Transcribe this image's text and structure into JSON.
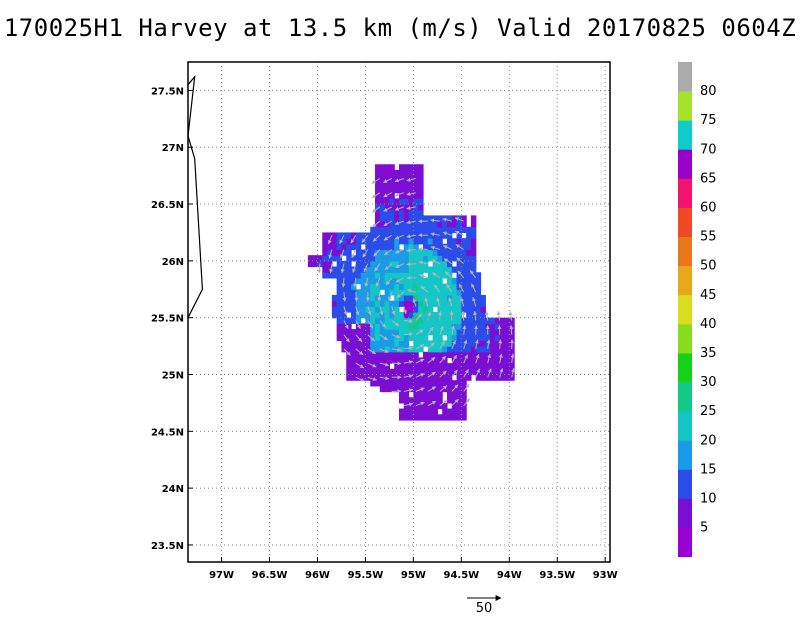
{
  "title": "170025H1 Harvey at 13.5 km (m/s) Valid 20170825 0604Z",
  "map": {
    "lon_range": [
      -97.35,
      -92.95
    ],
    "lat_range": [
      23.35,
      27.75
    ],
    "x_ticks": [
      {
        "value": -97.0,
        "label": "97W"
      },
      {
        "value": -96.5,
        "label": "96.5W"
      },
      {
        "value": -96.0,
        "label": "96W"
      },
      {
        "value": -95.5,
        "label": "95.5W"
      },
      {
        "value": -95.0,
        "label": "95W"
      },
      {
        "value": -94.5,
        "label": "94.5W"
      },
      {
        "value": -94.0,
        "label": "94W"
      },
      {
        "value": -93.5,
        "label": "93.5W"
      },
      {
        "value": -93.0,
        "label": "93W"
      }
    ],
    "y_ticks": [
      {
        "value": 23.5,
        "label": "23.5N"
      },
      {
        "value": 24.0,
        "label": "24N"
      },
      {
        "value": 24.5,
        "label": "24.5N"
      },
      {
        "value": 25.0,
        "label": "25N"
      },
      {
        "value": 25.5,
        "label": "25.5N"
      },
      {
        "value": 26.0,
        "label": "26N"
      },
      {
        "value": 26.5,
        "label": "26.5N"
      },
      {
        "value": 27.0,
        "label": "27N"
      },
      {
        "value": 27.5,
        "label": "27.5N"
      }
    ],
    "grid": true,
    "storm_center": {
      "lon": -95.05,
      "lat": 25.6
    },
    "coastline": [
      [
        -97.35,
        27.55
      ],
      [
        -97.28,
        27.62
      ],
      [
        -97.35,
        27.1
      ],
      [
        -97.28,
        26.9
      ],
      [
        -97.2,
        25.75
      ],
      [
        -97.35,
        25.5
      ]
    ]
  },
  "colorbar": {
    "labels": [
      "5",
      "10",
      "15",
      "20",
      "25",
      "30",
      "35",
      "40",
      "45",
      "50",
      "55",
      "60",
      "65",
      "70",
      "75",
      "80"
    ],
    "colors": [
      "#9b00d2",
      "#7a0ed3",
      "#2a4dea",
      "#1a9be8",
      "#14c6c6",
      "#14c88a",
      "#16d216",
      "#8adc1e",
      "#dcdc1e",
      "#e6a81a",
      "#e8781a",
      "#f04a24",
      "#f0146e",
      "#9b00c8",
      "#0ccccc",
      "#a6e22c",
      "#aaaaaa"
    ]
  },
  "reference_vector": {
    "label": "50",
    "units": "m/s"
  }
}
